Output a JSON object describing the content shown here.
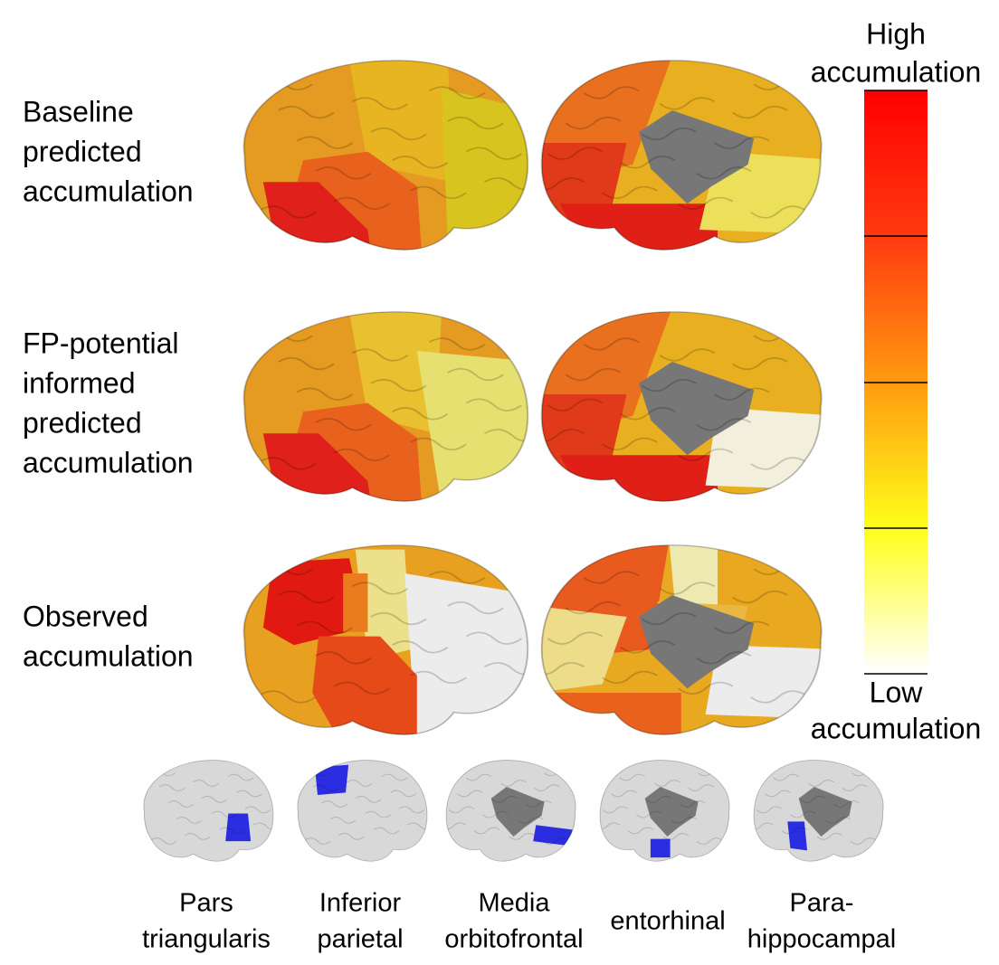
{
  "rows": [
    {
      "label": [
        "Baseline",
        "predicted",
        "accumulation"
      ]
    },
    {
      "label": [
        "FP-potential",
        "informed",
        "predicted",
        "accumulation"
      ]
    },
    {
      "label": [
        "Observed",
        "accumulation"
      ]
    }
  ],
  "colorbar": {
    "high": [
      "High",
      "accumulation"
    ],
    "low": [
      "Low",
      "accumulation"
    ]
  },
  "regions": [
    {
      "label": [
        "Pars",
        "triangularis"
      ]
    },
    {
      "label": [
        "Inferior",
        "parietal"
      ]
    },
    {
      "label": [
        "Media",
        "orbitofrontal"
      ]
    },
    {
      "label": [
        "entorhinal"
      ]
    },
    {
      "label": [
        "Para-",
        "hippocampal"
      ]
    }
  ]
}
